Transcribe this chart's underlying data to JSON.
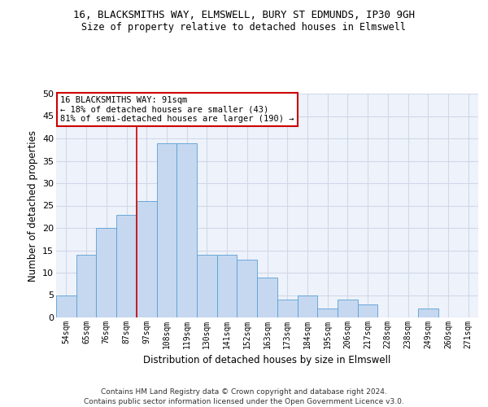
{
  "title_line1": "16, BLACKSMITHS WAY, ELMSWELL, BURY ST EDMUNDS, IP30 9GH",
  "title_line2": "Size of property relative to detached houses in Elmswell",
  "xlabel": "Distribution of detached houses by size in Elmswell",
  "ylabel": "Number of detached properties",
  "bin_labels": [
    "54sqm",
    "65sqm",
    "76sqm",
    "87sqm",
    "97sqm",
    "108sqm",
    "119sqm",
    "130sqm",
    "141sqm",
    "152sqm",
    "163sqm",
    "173sqm",
    "184sqm",
    "195sqm",
    "206sqm",
    "217sqm",
    "228sqm",
    "238sqm",
    "249sqm",
    "260sqm",
    "271sqm"
  ],
  "bar_heights": [
    5,
    14,
    20,
    23,
    26,
    39,
    39,
    14,
    14,
    13,
    9,
    4,
    5,
    2,
    4,
    3,
    0,
    0,
    2,
    0,
    0
  ],
  "bar_color": "#c5d8f0",
  "bar_edge_color": "#5a9fd4",
  "grid_color": "#d0d8e8",
  "bg_color": "#eef2fa",
  "annotation_line1": "16 BLACKSMITHS WAY: 91sqm",
  "annotation_line2": "← 18% of detached houses are smaller (43)",
  "annotation_line3": "81% of semi-detached houses are larger (190) →",
  "annotation_box_color": "#ffffff",
  "annotation_box_edge": "#cc0000",
  "vline_color": "#cc0000",
  "vline_x_index": 3.5,
  "ylim": [
    0,
    50
  ],
  "yticks": [
    0,
    5,
    10,
    15,
    20,
    25,
    30,
    35,
    40,
    45,
    50
  ],
  "footer_line1": "Contains HM Land Registry data © Crown copyright and database right 2024.",
  "footer_line2": "Contains public sector information licensed under the Open Government Licence v3.0."
}
